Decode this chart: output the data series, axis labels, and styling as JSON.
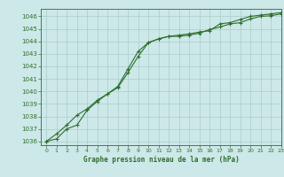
{
  "title": "Graphe pression niveau de la mer (hPa)",
  "background_color": "#cde8e8",
  "grid_color": "#aacccc",
  "line_color": "#2d6e2d",
  "xlim": [
    -0.5,
    23
  ],
  "ylim": [
    1035.7,
    1046.6
  ],
  "yticks": [
    1036,
    1037,
    1038,
    1039,
    1040,
    1041,
    1042,
    1043,
    1044,
    1045,
    1046
  ],
  "xticks": [
    0,
    1,
    2,
    3,
    4,
    5,
    6,
    7,
    8,
    9,
    10,
    11,
    12,
    13,
    14,
    15,
    16,
    17,
    18,
    19,
    20,
    21,
    22,
    23
  ],
  "line1_x": [
    0,
    1,
    2,
    3,
    4,
    5,
    6,
    7,
    8,
    9,
    10,
    11,
    12,
    13,
    14,
    15,
    16,
    17,
    18,
    19,
    20,
    21,
    22,
    23
  ],
  "line1_y": [
    1036.0,
    1036.2,
    1037.0,
    1037.3,
    1038.5,
    1039.2,
    1039.8,
    1040.3,
    1041.5,
    1042.8,
    1043.9,
    1044.2,
    1044.4,
    1044.4,
    1044.5,
    1044.65,
    1044.95,
    1045.15,
    1045.4,
    1045.5,
    1045.8,
    1046.0,
    1046.05,
    1046.2
  ],
  "line2_x": [
    0,
    1,
    2,
    3,
    4,
    5,
    6,
    7,
    8,
    9,
    10,
    11,
    12,
    13,
    14,
    15,
    16,
    17,
    18,
    19,
    20,
    21,
    22,
    23
  ],
  "line2_y": [
    1036.0,
    1036.6,
    1037.3,
    1038.1,
    1038.6,
    1039.3,
    1039.8,
    1040.4,
    1041.8,
    1043.2,
    1043.9,
    1044.2,
    1044.4,
    1044.5,
    1044.6,
    1044.75,
    1044.85,
    1045.4,
    1045.5,
    1045.75,
    1046.0,
    1046.1,
    1046.2,
    1046.3
  ]
}
